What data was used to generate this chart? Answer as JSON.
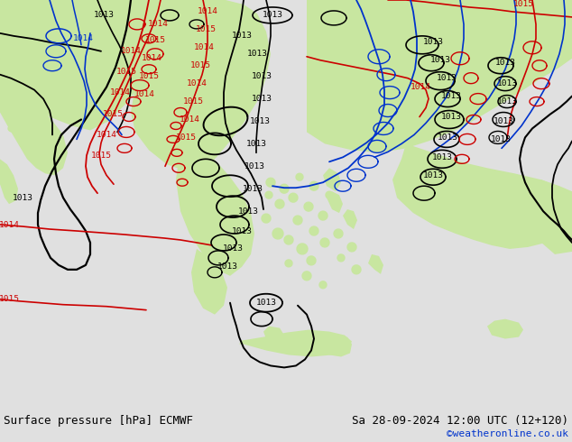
{
  "title_left": "Surface pressure [hPa] ECMWF",
  "title_right": "Sa 28-09-2024 12:00 UTC (12+120)",
  "credit": "©weatheronline.co.uk",
  "bg_color": "#e0e0e0",
  "land_color": "#c8e6a0",
  "sea_color": "#d8d8d8",
  "footer_bg": "#cccccc",
  "contour_black": "#000000",
  "contour_red": "#cc0000",
  "contour_blue": "#0033cc",
  "credit_color": "#0033cc",
  "footer_fontsize": 9,
  "credit_fontsize": 8,
  "figsize": [
    6.34,
    4.9
  ],
  "dpi": 100
}
